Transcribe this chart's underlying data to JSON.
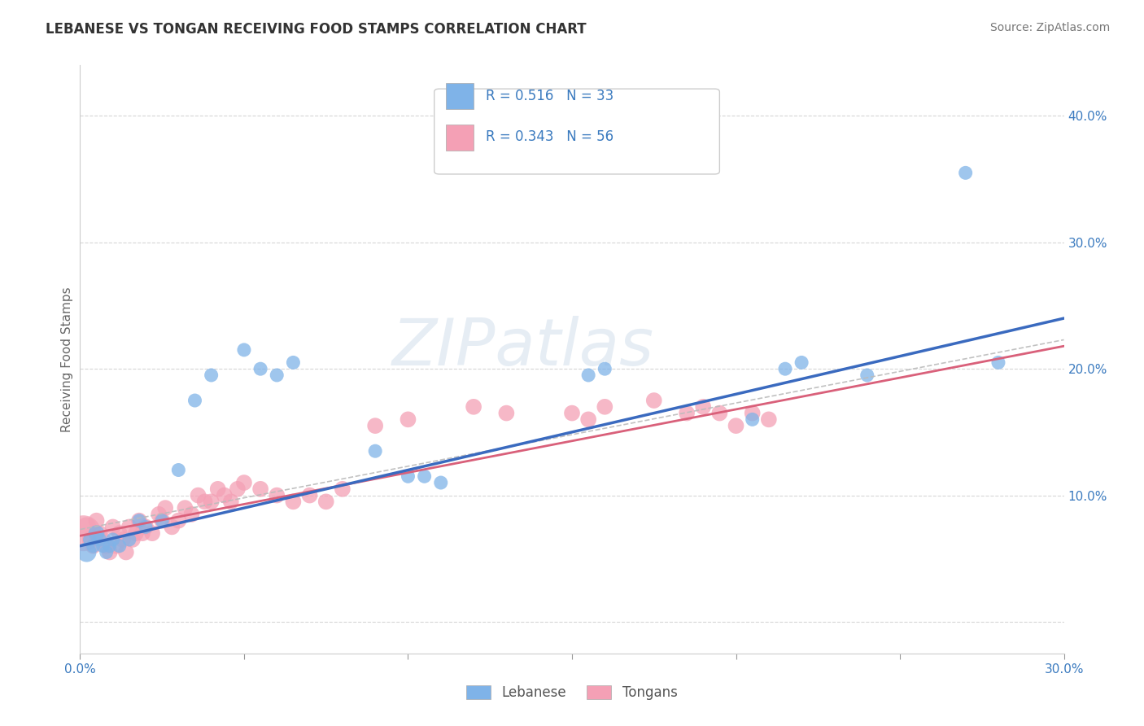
{
  "title": "LEBANESE VS TONGAN RECEIVING FOOD STAMPS CORRELATION CHART",
  "source": "Source: ZipAtlas.com",
  "ylabel_label": "Receiving Food Stamps",
  "xlim": [
    0.0,
    0.3
  ],
  "ylim": [
    -0.025,
    0.44
  ],
  "ytick_positions": [
    0.0,
    0.1,
    0.2,
    0.3,
    0.4
  ],
  "ytick_labels": [
    "",
    "10.0%",
    "20.0%",
    "30.0%",
    "40.0%"
  ],
  "xtick_positions": [
    0.0,
    0.05,
    0.1,
    0.15,
    0.2,
    0.25,
    0.3
  ],
  "xtick_labels": [
    "0.0%",
    "",
    "",
    "",
    "",
    "",
    "30.0%"
  ],
  "lebanese_R": 0.516,
  "lebanese_N": 33,
  "tongan_R": 0.343,
  "tongan_N": 56,
  "lebanese_color": "#7fb3e8",
  "tongan_color": "#f4a0b5",
  "lebanese_line_color": "#3a6abf",
  "tongan_line_color": "#d9607a",
  "dashed_line_color": "#bbbbbb",
  "watermark_text": "ZIPatlas",
  "lebanese_x": [
    0.002,
    0.003,
    0.004,
    0.005,
    0.006,
    0.007,
    0.008,
    0.009,
    0.01,
    0.012,
    0.015,
    0.018,
    0.02,
    0.025,
    0.03,
    0.035,
    0.04,
    0.05,
    0.055,
    0.06,
    0.065,
    0.09,
    0.1,
    0.105,
    0.11,
    0.155,
    0.16,
    0.205,
    0.215,
    0.22,
    0.24,
    0.27,
    0.28
  ],
  "lebanese_y": [
    0.055,
    0.065,
    0.06,
    0.07,
    0.065,
    0.06,
    0.055,
    0.06,
    0.065,
    0.06,
    0.065,
    0.08,
    0.075,
    0.08,
    0.12,
    0.175,
    0.195,
    0.215,
    0.2,
    0.195,
    0.205,
    0.135,
    0.115,
    0.115,
    0.11,
    0.195,
    0.2,
    0.16,
    0.2,
    0.205,
    0.195,
    0.355,
    0.205
  ],
  "lebanese_size": [
    60,
    30,
    30,
    40,
    30,
    30,
    30,
    30,
    30,
    30,
    30,
    30,
    30,
    30,
    30,
    30,
    30,
    30,
    30,
    30,
    30,
    30,
    30,
    30,
    30,
    30,
    30,
    30,
    30,
    30,
    30,
    30,
    30
  ],
  "tongan_x": [
    0.001,
    0.002,
    0.003,
    0.004,
    0.005,
    0.006,
    0.007,
    0.008,
    0.009,
    0.01,
    0.011,
    0.012,
    0.013,
    0.014,
    0.015,
    0.016,
    0.017,
    0.018,
    0.019,
    0.02,
    0.022,
    0.024,
    0.025,
    0.026,
    0.028,
    0.03,
    0.032,
    0.034,
    0.036,
    0.038,
    0.04,
    0.042,
    0.044,
    0.046,
    0.048,
    0.05,
    0.055,
    0.06,
    0.065,
    0.07,
    0.075,
    0.08,
    0.09,
    0.1,
    0.12,
    0.13,
    0.15,
    0.155,
    0.16,
    0.175,
    0.185,
    0.19,
    0.195,
    0.2,
    0.205,
    0.21
  ],
  "tongan_y": [
    0.07,
    0.075,
    0.065,
    0.06,
    0.08,
    0.07,
    0.065,
    0.06,
    0.055,
    0.075,
    0.06,
    0.07,
    0.065,
    0.055,
    0.075,
    0.065,
    0.07,
    0.08,
    0.07,
    0.075,
    0.07,
    0.085,
    0.08,
    0.09,
    0.075,
    0.08,
    0.09,
    0.085,
    0.1,
    0.095,
    0.095,
    0.105,
    0.1,
    0.095,
    0.105,
    0.11,
    0.105,
    0.1,
    0.095,
    0.1,
    0.095,
    0.105,
    0.155,
    0.16,
    0.17,
    0.165,
    0.165,
    0.16,
    0.17,
    0.175,
    0.165,
    0.17,
    0.165,
    0.155,
    0.165,
    0.16
  ],
  "tongan_size": [
    200,
    60,
    40,
    40,
    40,
    40,
    40,
    40,
    40,
    40,
    40,
    40,
    40,
    40,
    40,
    40,
    40,
    40,
    40,
    40,
    40,
    40,
    40,
    40,
    40,
    40,
    40,
    40,
    40,
    40,
    40,
    40,
    40,
    40,
    40,
    40,
    40,
    40,
    40,
    40,
    40,
    40,
    40,
    40,
    40,
    40,
    40,
    40,
    40,
    40,
    40,
    40,
    40,
    40,
    40,
    40
  ],
  "leb_line_intercept": 0.06,
  "leb_line_slope": 0.6,
  "ton_line_intercept": 0.068,
  "ton_line_slope": 0.5
}
